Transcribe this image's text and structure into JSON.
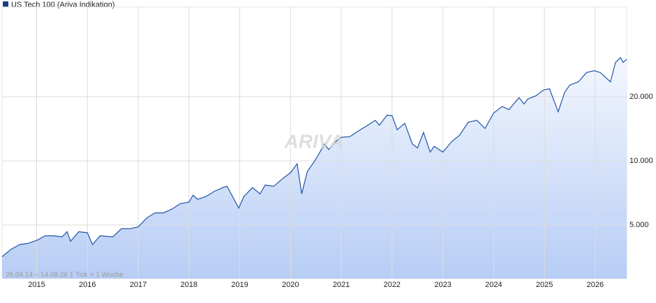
{
  "chart_data": {
    "type": "line",
    "title": "US Tech 100 (Ariva Indikation)",
    "watermark": "ARIVA",
    "annotation": "28.04.14 – 14.08.26   1 Tick = 1 Woche",
    "log_scale": true,
    "grid": true,
    "xlim": [
      2014.32,
      2026.62
    ],
    "xticks": [
      2015,
      2016,
      2017,
      2018,
      2019,
      2020,
      2021,
      2022,
      2023,
      2024,
      2025,
      2026
    ],
    "ylim": [
      2800,
      52800
    ],
    "yticks": [
      {
        "value": 5000,
        "label": "5.000"
      },
      {
        "value": 10000,
        "label": "10.000"
      },
      {
        "value": 20000,
        "label": "20.000"
      }
    ],
    "x": [
      2014.32,
      2014.5,
      2014.67,
      2014.83,
      2015.0,
      2015.17,
      2015.33,
      2015.5,
      2015.6,
      2015.67,
      2015.83,
      2016.0,
      2016.1,
      2016.25,
      2016.5,
      2016.67,
      2016.83,
      2017.0,
      2017.17,
      2017.33,
      2017.5,
      2017.67,
      2017.83,
      2018.0,
      2018.08,
      2018.17,
      2018.33,
      2018.5,
      2018.67,
      2018.75,
      2018.83,
      2018.98,
      2019.08,
      2019.25,
      2019.4,
      2019.5,
      2019.67,
      2019.83,
      2020.0,
      2020.13,
      2020.22,
      2020.33,
      2020.5,
      2020.67,
      2020.75,
      2020.92,
      2021.0,
      2021.17,
      2021.33,
      2021.5,
      2021.67,
      2021.75,
      2021.9,
      2022.0,
      2022.1,
      2022.25,
      2022.4,
      2022.5,
      2022.62,
      2022.75,
      2022.83,
      2023.0,
      2023.17,
      2023.33,
      2023.5,
      2023.67,
      2023.83,
      2024.0,
      2024.17,
      2024.3,
      2024.5,
      2024.6,
      2024.67,
      2024.83,
      2024.98,
      2025.1,
      2025.27,
      2025.4,
      2025.5,
      2025.67,
      2025.83,
      2025.98,
      2026.1,
      2026.3,
      2026.4,
      2026.5,
      2026.55,
      2026.62
    ],
    "series": [
      {
        "name": "US Tech 100 (Ariva Indikation)",
        "color": "#1f55a8",
        "values": [
          3550,
          3850,
          4050,
          4100,
          4230,
          4450,
          4450,
          4400,
          4650,
          4200,
          4650,
          4600,
          4050,
          4450,
          4400,
          4800,
          4800,
          4900,
          5400,
          5700,
          5700,
          5950,
          6300,
          6400,
          6900,
          6600,
          6800,
          7200,
          7500,
          7600,
          7000,
          6000,
          6800,
          7500,
          7000,
          7700,
          7600,
          8200,
          8800,
          9700,
          7000,
          8900,
          10200,
          12000,
          11300,
          12500,
          12900,
          13000,
          13800,
          14600,
          15500,
          14700,
          16400,
          16300,
          14000,
          15000,
          12000,
          11500,
          13600,
          11000,
          11700,
          11000,
          12300,
          13200,
          15200,
          15500,
          14200,
          16800,
          18000,
          17400,
          19800,
          18500,
          19500,
          20200,
          21500,
          21800,
          17000,
          21000,
          22700,
          23500,
          26000,
          26500,
          26000,
          23500,
          29000,
          30500,
          29000,
          30000
        ]
      }
    ]
  }
}
